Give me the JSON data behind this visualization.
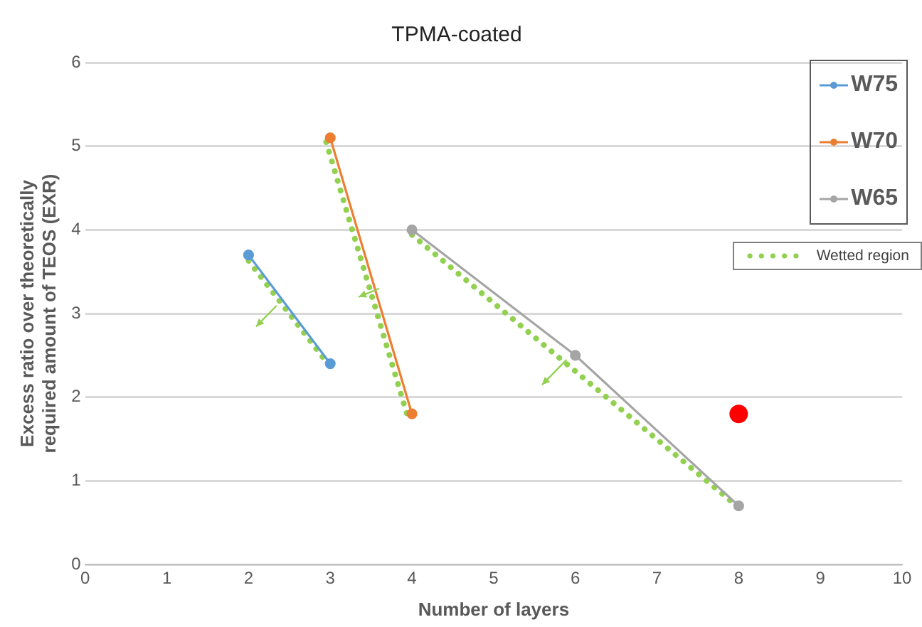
{
  "chart_data": {
    "type": "line",
    "title": "TPMA-coated",
    "xlabel": "Number of layers",
    "ylabel": "Excess ratio over theoretically required amount of TEOS (EXR)",
    "xlim": [
      0,
      10
    ],
    "xticks": [
      0,
      1,
      2,
      3,
      4,
      5,
      6,
      7,
      8,
      9,
      10
    ],
    "ylim": [
      0,
      6
    ],
    "yticks": [
      0,
      1,
      2,
      3,
      4,
      5,
      6
    ],
    "grid": "y",
    "legend": "right",
    "marker": "circle",
    "series": [
      {
        "name": "W75",
        "color": "#5b9bd5",
        "x": [
          2,
          3
        ],
        "values": [
          3.7,
          2.4
        ]
      },
      {
        "name": "W70",
        "color": "#ed7d31",
        "x": [
          3,
          4
        ],
        "values": [
          5.1,
          1.8
        ]
      },
      {
        "name": "W65",
        "color": "#a5a5a5",
        "x": [
          4,
          6,
          8
        ],
        "values": [
          4.0,
          2.5,
          0.7
        ]
      },
      {
        "name": "Wetted region",
        "color": "#92d050",
        "line_style": "dotted",
        "marker": "none",
        "x": [
          2,
          3,
          null,
          2.95,
          3.95,
          null,
          4,
          8
        ],
        "values": [
          3.63,
          2.36,
          null,
          5.05,
          1.76,
          null,
          3.94,
          0.68
        ]
      },
      {
        "type": "scatter",
        "color": "#ff0000",
        "x": [
          8
        ],
        "values": [
          1.8
        ]
      }
    ]
  }
}
